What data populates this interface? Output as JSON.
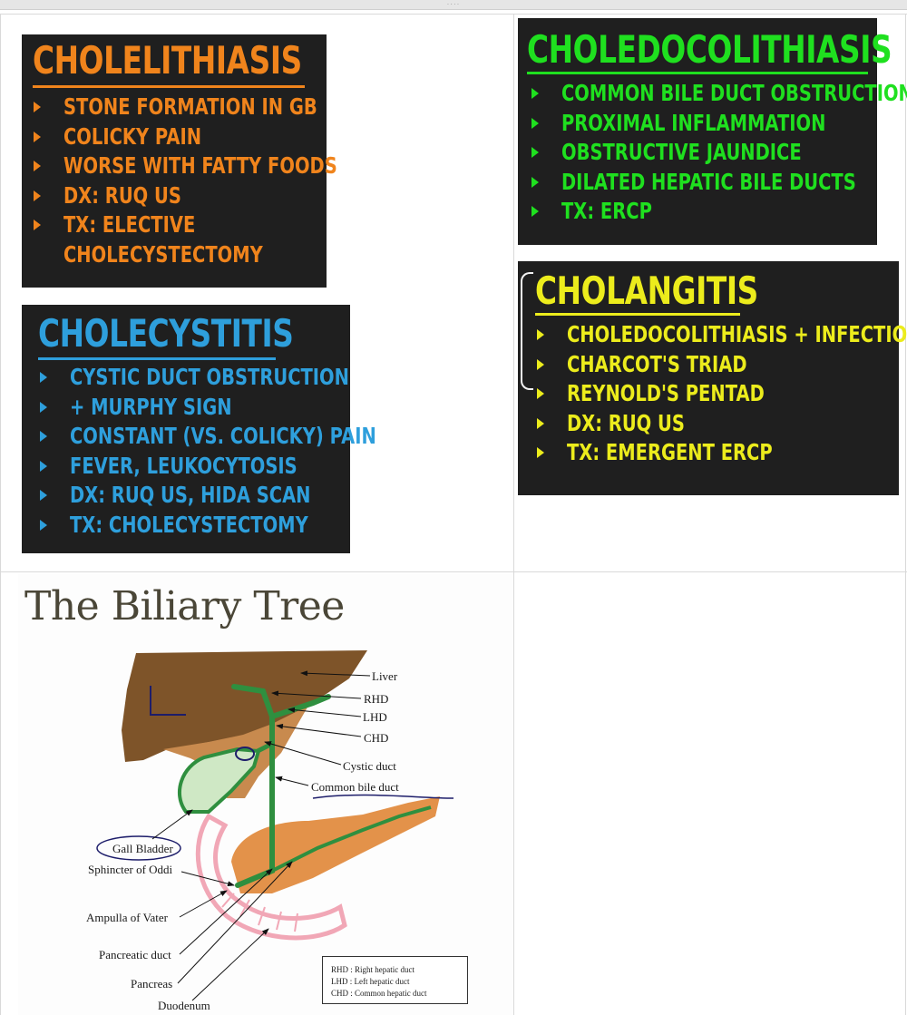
{
  "cards": {
    "cholelithiasis": {
      "title": "CHOLELITHIASIS",
      "items": [
        "STONE FORMATION IN GB",
        "COLICKY PAIN",
        "WORSE WITH FATTY FOODS",
        "DX: RUQ US",
        "TX: ELECTIVE"
      ],
      "continuation": "CHOLECYSTECTOMY",
      "color": "#f0841c"
    },
    "cholecystitis": {
      "title": "CHOLECYSTITIS",
      "items": [
        "CYSTIC DUCT OBSTRUCTION",
        "+ MURPHY SIGN",
        "CONSTANT (VS. COLICKY) PAIN",
        "FEVER, LEUKOCYTOSIS",
        "DX: RUQ US, HIDA SCAN",
        "TX: CHOLECYSTECTOMY"
      ],
      "color": "#2e9fdc"
    },
    "choledocolithiasis": {
      "title": "CHOLEDOCOLITHIASIS",
      "items": [
        "COMMON BILE DUCT OBSTRUCTION",
        "PROXIMAL INFLAMMATION",
        "OBSTRUCTIVE JAUNDICE",
        "DILATED HEPATIC BILE DUCTS",
        "TX: ERCP"
      ],
      "color": "#1fe01f"
    },
    "cholangitis": {
      "title": "CHOLANGITIS",
      "items": [
        "CHOLEDOCOLITHIASIS + INFECTION",
        "CHARCOT'S TRIAD",
        "REYNOLD'S PENTAD",
        "DX: RUQ US",
        "TX: EMERGENT ERCP"
      ],
      "color": "#ecec1c"
    }
  },
  "biliary": {
    "title": "The Biliary Tree",
    "labels": {
      "liver": "Liver",
      "rhd": "RHD",
      "lhd": "LHD",
      "chd": "CHD",
      "cystic_duct": "Cystic duct",
      "common_bile_duct": "Common bile duct",
      "gall_bladder": "Gall Bladder",
      "sphincter": "Sphincter of Oddi",
      "ampulla": "Ampulla of Vater",
      "pancreatic_duct": "Pancreatic duct",
      "pancreas": "Pancreas",
      "duodenum": "Duodenum"
    },
    "legend": [
      "RHD : Right hepatic duct",
      "LHD : Left hepatic duct",
      "CHD : Common hepatic duct"
    ]
  }
}
